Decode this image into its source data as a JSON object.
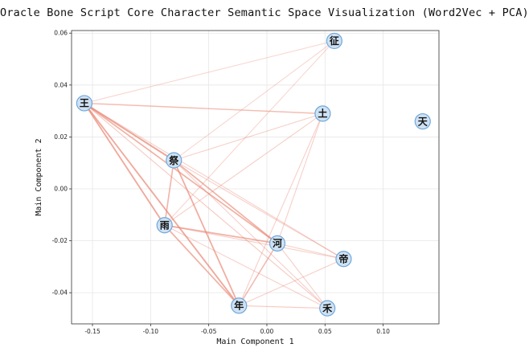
{
  "chart_data": {
    "type": "scatter",
    "title": "Oracle Bone Script Core Character Semantic Space Visualization (Word2Vec + PCA)",
    "xlabel": "Main Component 1",
    "ylabel": "Main Component 2",
    "xlim": [
      -0.168,
      0.148
    ],
    "ylim": [
      -0.052,
      0.061
    ],
    "xticks": [
      "-0.15",
      "-0.10",
      "-0.05",
      "0.00",
      "0.05",
      "0.10"
    ],
    "xtick_values": [
      -0.15,
      -0.1,
      -0.05,
      0.0,
      0.05,
      0.1
    ],
    "yticks": [
      "-0.04",
      "-0.02",
      "0.00",
      "0.02",
      "0.04",
      "0.06"
    ],
    "ytick_values": [
      -0.04,
      -0.02,
      0.0,
      0.02,
      0.04,
      0.06
    ],
    "grid": true,
    "node_fill": "#cfe2f3",
    "node_stroke": "#6fa8dc",
    "edge_color": "#e8826e",
    "points": [
      {
        "label": "王",
        "x": -0.157,
        "y": 0.033
      },
      {
        "label": "祭",
        "x": -0.08,
        "y": 0.011
      },
      {
        "label": "雨",
        "x": -0.088,
        "y": -0.014
      },
      {
        "label": "年",
        "x": -0.024,
        "y": -0.045
      },
      {
        "label": "河",
        "x": 0.009,
        "y": -0.021
      },
      {
        "label": "土",
        "x": 0.048,
        "y": 0.029
      },
      {
        "label": "征",
        "x": 0.058,
        "y": 0.057
      },
      {
        "label": "帝",
        "x": 0.066,
        "y": -0.027
      },
      {
        "label": "禾",
        "x": 0.052,
        "y": -0.046
      },
      {
        "label": "天",
        "x": 0.134,
        "y": 0.026
      }
    ],
    "edges": [
      {
        "from": "王",
        "to": "征",
        "weight": 0.25
      },
      {
        "from": "王",
        "to": "土",
        "weight": 0.55
      },
      {
        "from": "王",
        "to": "祭",
        "weight": 0.85
      },
      {
        "from": "王",
        "to": "雨",
        "weight": 0.8
      },
      {
        "from": "王",
        "to": "河",
        "weight": 0.7
      },
      {
        "from": "王",
        "to": "年",
        "weight": 0.8
      },
      {
        "from": "王",
        "to": "帝",
        "weight": 0.3
      },
      {
        "from": "王",
        "to": "禾",
        "weight": 0.35
      },
      {
        "from": "祭",
        "to": "征",
        "weight": 0.25
      },
      {
        "from": "祭",
        "to": "土",
        "weight": 0.3
      },
      {
        "from": "祭",
        "to": "雨",
        "weight": 0.65
      },
      {
        "from": "祭",
        "to": "河",
        "weight": 0.7
      },
      {
        "from": "祭",
        "to": "年",
        "weight": 0.75
      },
      {
        "from": "祭",
        "to": "帝",
        "weight": 0.3
      },
      {
        "from": "祭",
        "to": "禾",
        "weight": 0.3
      },
      {
        "from": "雨",
        "to": "征",
        "weight": 0.25
      },
      {
        "from": "雨",
        "to": "土",
        "weight": 0.3
      },
      {
        "from": "雨",
        "to": "河",
        "weight": 0.7
      },
      {
        "from": "雨",
        "to": "年",
        "weight": 0.7
      },
      {
        "from": "雨",
        "to": "帝",
        "weight": 0.3
      },
      {
        "from": "雨",
        "to": "禾",
        "weight": 0.3
      },
      {
        "from": "年",
        "to": "河",
        "weight": 0.6
      },
      {
        "from": "年",
        "to": "土",
        "weight": 0.3
      },
      {
        "from": "年",
        "to": "禾",
        "weight": 0.35
      },
      {
        "from": "年",
        "to": "帝",
        "weight": 0.3
      },
      {
        "from": "河",
        "to": "帝",
        "weight": 0.3
      },
      {
        "from": "河",
        "to": "禾",
        "weight": 0.3
      },
      {
        "from": "河",
        "to": "土",
        "weight": 0.3
      }
    ]
  }
}
